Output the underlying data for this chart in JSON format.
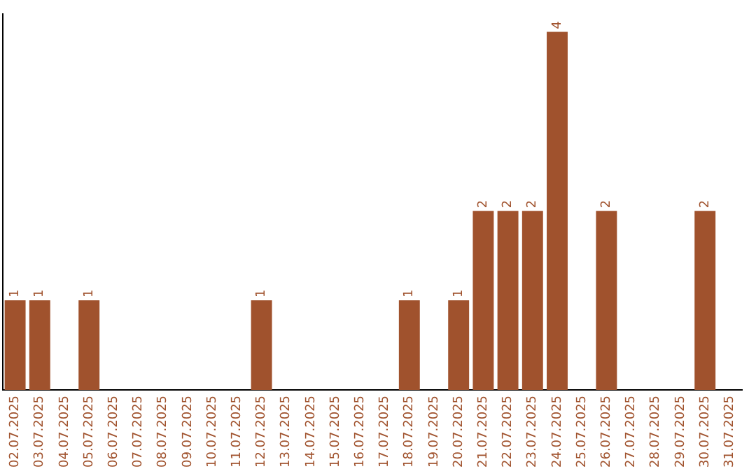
{
  "chart_data": {
    "type": "bar",
    "categories": [
      "02.07.2025",
      "03.07.2025",
      "04.07.2025",
      "05.07.2025",
      "06.07.2025",
      "07.07.2025",
      "08.07.2025",
      "09.07.2025",
      "10.07.2025",
      "11.07.2025",
      "12.07.2025",
      "13.07.2025",
      "14.07.2025",
      "15.07.2025",
      "16.07.2025",
      "17.07.2025",
      "18.07.2025",
      "19.07.2025",
      "20.07.2025",
      "21.07.2025",
      "22.07.2025",
      "23.07.2025",
      "24.07.2025",
      "25.07.2025",
      "26.07.2025",
      "27.07.2025",
      "28.07.2025",
      "29.07.2025",
      "30.07.2025",
      "31.07.2025"
    ],
    "values": [
      1,
      1,
      0,
      1,
      0,
      0,
      0,
      0,
      0,
      0,
      1,
      0,
      0,
      0,
      0,
      0,
      1,
      0,
      1,
      2,
      2,
      2,
      4,
      0,
      2,
      0,
      0,
      0,
      2,
      0
    ],
    "value_labels": [
      "1",
      "1",
      null,
      "1",
      null,
      null,
      null,
      null,
      null,
      null,
      "1",
      null,
      null,
      null,
      null,
      null,
      "1",
      null,
      "1",
      "2",
      "2",
      "2",
      "4",
      null,
      "2",
      null,
      null,
      null,
      "2",
      null
    ],
    "color": "#a0522d",
    "ylim": [
      0,
      4.2
    ],
    "tick_labels": "x",
    "grid": false,
    "legend": false
  }
}
